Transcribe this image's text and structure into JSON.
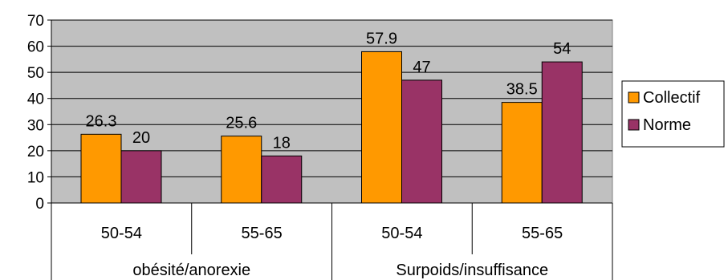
{
  "chart_data": {
    "type": "bar",
    "groups": [
      {
        "label": "obésité/anorexie",
        "categories": [
          "50-54",
          "55-65"
        ]
      },
      {
        "label": "Surpoids/insuffisance",
        "categories": [
          "50-54",
          "55-65"
        ]
      }
    ],
    "categories": [
      "50-54",
      "55-65",
      "50-54",
      "55-65"
    ],
    "series": [
      {
        "name": "Collectif",
        "color": "#FF9900",
        "values": [
          26.3,
          25.6,
          57.9,
          38.5
        ],
        "labels": [
          "26.3",
          "25.6",
          "57.9",
          "38.5"
        ]
      },
      {
        "name": "Norme",
        "color": "#993366",
        "values": [
          20,
          18,
          47,
          54
        ],
        "labels": [
          "20",
          "18",
          "47",
          "54"
        ]
      }
    ],
    "ylim": [
      0,
      70
    ],
    "yticks": [
      0,
      10,
      20,
      30,
      40,
      50,
      60,
      70
    ],
    "grid": true,
    "plot_background": "#C0C0C0",
    "legend_position": "right"
  }
}
